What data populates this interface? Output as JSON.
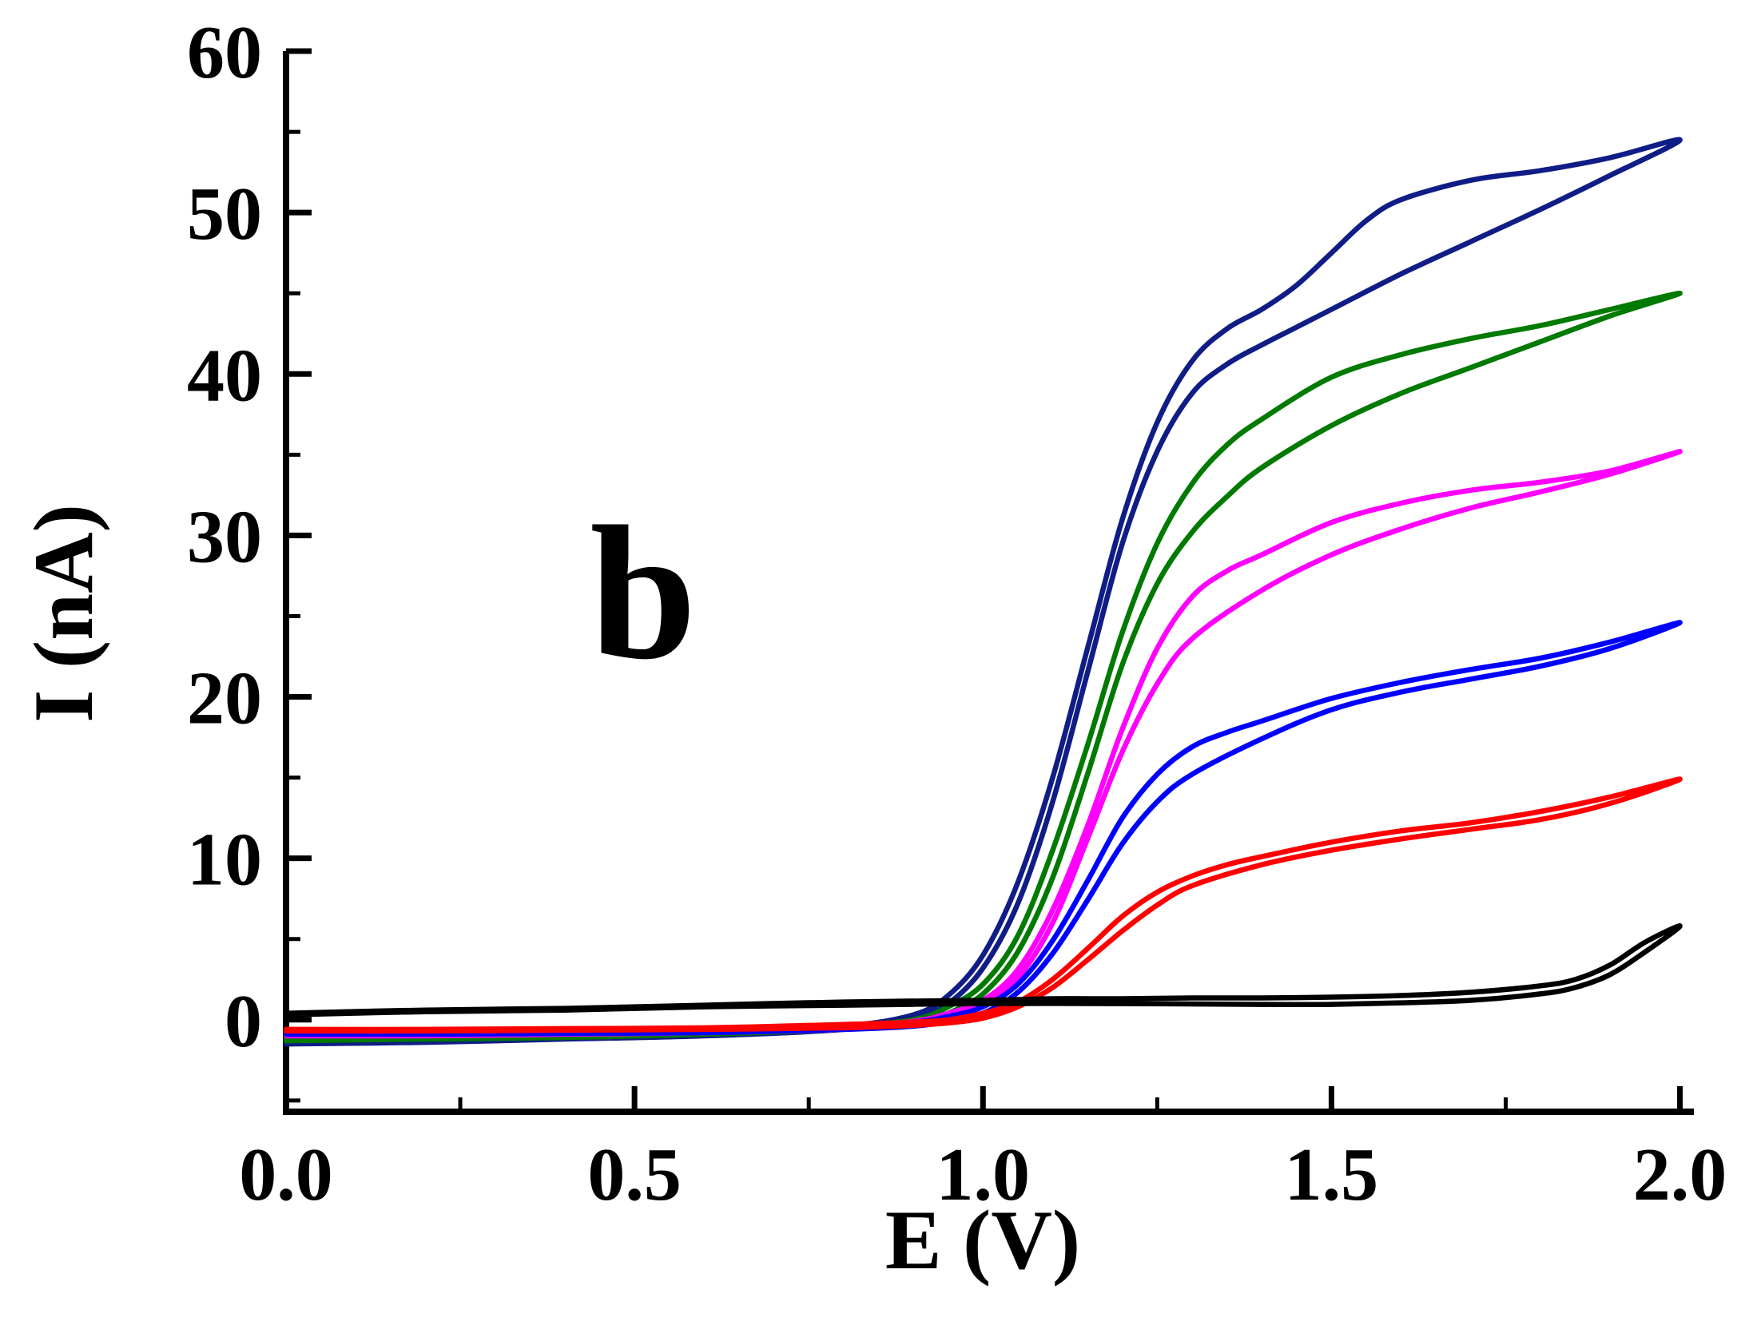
{
  "figure": {
    "background": "#ffffff"
  },
  "chart_data": {
    "type": "line",
    "title": "",
    "xlabel": "E (V)",
    "ylabel": "I (nA)",
    "annotation": {
      "text": "b",
      "x": 0.5,
      "y": 26
    },
    "xlim": [
      0,
      2.02
    ],
    "ylim": [
      -5.7,
      60
    ],
    "grid": false,
    "legend": "none",
    "axis_color": "#000000",
    "xticks": {
      "values": [
        0,
        0.5,
        1.0,
        1.5,
        2.0
      ],
      "labels": [
        "0.0",
        "0.5",
        "1.0",
        "1.5",
        "2.0"
      ]
    },
    "yticks": {
      "values": [
        0,
        10,
        20,
        30,
        40,
        50,
        60
      ],
      "labels": [
        "0",
        "10",
        "20",
        "30",
        "40",
        "50",
        "60"
      ]
    },
    "x_minor_ticks": [
      0.25,
      0.75,
      1.25,
      1.75
    ],
    "y_minor_ticks": [
      -5,
      5,
      15,
      25,
      35,
      45,
      55
    ],
    "series": [
      {
        "name": "navy",
        "color": "#101d86",
        "peak_current_nA": 54.5,
        "forward": [
          [
            0,
            -1.5
          ],
          [
            0.2,
            -1.3
          ],
          [
            0.4,
            -1.1
          ],
          [
            0.6,
            -0.9
          ],
          [
            0.8,
            -0.4
          ],
          [
            0.9,
            0.3
          ],
          [
            0.95,
            1.5
          ],
          [
            1.0,
            4
          ],
          [
            1.05,
            8.5
          ],
          [
            1.1,
            15
          ],
          [
            1.15,
            23
          ],
          [
            1.2,
            31
          ],
          [
            1.25,
            37
          ],
          [
            1.3,
            40.8
          ],
          [
            1.35,
            42.8
          ],
          [
            1.4,
            44
          ],
          [
            1.45,
            45.5
          ],
          [
            1.5,
            47.5
          ],
          [
            1.55,
            49.5
          ],
          [
            1.6,
            50.8
          ],
          [
            1.7,
            52
          ],
          [
            1.8,
            52.6
          ],
          [
            1.9,
            53.4
          ],
          [
            2.0,
            54.5
          ]
        ],
        "reverse": [
          [
            2.0,
            54.5
          ],
          [
            1.9,
            52.3
          ],
          [
            1.8,
            50.2
          ],
          [
            1.7,
            48.2
          ],
          [
            1.6,
            46.2
          ],
          [
            1.5,
            44
          ],
          [
            1.45,
            42.9
          ],
          [
            1.4,
            41.8
          ],
          [
            1.35,
            40.6
          ],
          [
            1.3,
            38.8
          ],
          [
            1.25,
            35.2
          ],
          [
            1.2,
            29.5
          ],
          [
            1.15,
            21.5
          ],
          [
            1.1,
            13.5
          ],
          [
            1.05,
            7.2
          ],
          [
            1.0,
            3.2
          ],
          [
            0.95,
            1.0
          ],
          [
            0.9,
            0.1
          ],
          [
            0.8,
            -0.6
          ],
          [
            0.6,
            -1.0
          ],
          [
            0.4,
            -1.2
          ],
          [
            0.2,
            -1.4
          ],
          [
            0,
            -1.5
          ]
        ]
      },
      {
        "name": "green",
        "color": "#007a00",
        "peak_current_nA": 45,
        "forward": [
          [
            0,
            -1.2
          ],
          [
            0.2,
            -1.1
          ],
          [
            0.4,
            -1.0
          ],
          [
            0.6,
            -0.8
          ],
          [
            0.8,
            -0.4
          ],
          [
            0.9,
            0.0
          ],
          [
            0.95,
            0.8
          ],
          [
            1.0,
            2.2
          ],
          [
            1.05,
            5.2
          ],
          [
            1.1,
            10.5
          ],
          [
            1.15,
            17
          ],
          [
            1.2,
            24
          ],
          [
            1.25,
            29.5
          ],
          [
            1.3,
            33.2
          ],
          [
            1.35,
            35.6
          ],
          [
            1.4,
            37.2
          ],
          [
            1.5,
            39.8
          ],
          [
            1.6,
            41.2
          ],
          [
            1.7,
            42.2
          ],
          [
            1.8,
            43
          ],
          [
            1.9,
            44
          ],
          [
            2.0,
            45
          ]
        ],
        "reverse": [
          [
            2.0,
            45
          ],
          [
            1.9,
            43.6
          ],
          [
            1.8,
            42
          ],
          [
            1.7,
            40.4
          ],
          [
            1.6,
            38.8
          ],
          [
            1.5,
            36.8
          ],
          [
            1.4,
            34.2
          ],
          [
            1.35,
            32.4
          ],
          [
            1.3,
            30.2
          ],
          [
            1.25,
            27
          ],
          [
            1.2,
            22
          ],
          [
            1.15,
            15.2
          ],
          [
            1.1,
            8.8
          ],
          [
            1.05,
            4.2
          ],
          [
            1.0,
            1.6
          ],
          [
            0.95,
            0.4
          ],
          [
            0.9,
            -0.3
          ],
          [
            0.8,
            -0.6
          ],
          [
            0.6,
            -0.9
          ],
          [
            0.4,
            -1.1
          ],
          [
            0.2,
            -1.2
          ],
          [
            0,
            -1.3
          ]
        ]
      },
      {
        "name": "magenta",
        "color": "#ff00ff",
        "peak_current_nA": 35.2,
        "forward": [
          [
            0,
            -0.9
          ],
          [
            0.2,
            -0.85
          ],
          [
            0.4,
            -0.8
          ],
          [
            0.6,
            -0.7
          ],
          [
            0.8,
            -0.4
          ],
          [
            0.9,
            -0.1
          ],
          [
            0.95,
            0.4
          ],
          [
            1.0,
            1.2
          ],
          [
            1.05,
            3.1
          ],
          [
            1.1,
            6.8
          ],
          [
            1.15,
            12
          ],
          [
            1.2,
            18
          ],
          [
            1.25,
            23
          ],
          [
            1.3,
            26.2
          ],
          [
            1.35,
            27.8
          ],
          [
            1.4,
            28.8
          ],
          [
            1.5,
            30.8
          ],
          [
            1.6,
            32
          ],
          [
            1.7,
            32.8
          ],
          [
            1.8,
            33.3
          ],
          [
            1.9,
            34
          ],
          [
            2.0,
            35.2
          ]
        ],
        "reverse": [
          [
            2.0,
            35.2
          ],
          [
            1.9,
            33.8
          ],
          [
            1.8,
            32.7
          ],
          [
            1.7,
            31.7
          ],
          [
            1.6,
            30.4
          ],
          [
            1.5,
            28.8
          ],
          [
            1.4,
            26.6
          ],
          [
            1.3,
            23.6
          ],
          [
            1.25,
            20.8
          ],
          [
            1.2,
            16.6
          ],
          [
            1.15,
            11.2
          ],
          [
            1.1,
            6
          ],
          [
            1.05,
            2.6
          ],
          [
            1.0,
            0.9
          ],
          [
            0.95,
            0.1
          ],
          [
            0.9,
            -0.3
          ],
          [
            0.8,
            -0.6
          ],
          [
            0.6,
            -0.8
          ],
          [
            0.4,
            -0.9
          ],
          [
            0.2,
            -1.0
          ],
          [
            0,
            -1.0
          ]
        ]
      },
      {
        "name": "blue",
        "color": "#0000ff",
        "peak_current_nA": 24.6,
        "forward": [
          [
            0,
            -0.8
          ],
          [
            0.2,
            -0.8
          ],
          [
            0.4,
            -0.75
          ],
          [
            0.6,
            -0.7
          ],
          [
            0.8,
            -0.4
          ],
          [
            0.9,
            -0.15
          ],
          [
            0.95,
            0.2
          ],
          [
            1.0,
            0.8
          ],
          [
            1.05,
            2.2
          ],
          [
            1.1,
            4.9
          ],
          [
            1.15,
            8.6
          ],
          [
            1.2,
            12.5
          ],
          [
            1.25,
            15.2
          ],
          [
            1.3,
            16.9
          ],
          [
            1.35,
            17.8
          ],
          [
            1.4,
            18.5
          ],
          [
            1.5,
            19.9
          ],
          [
            1.6,
            20.9
          ],
          [
            1.7,
            21.7
          ],
          [
            1.8,
            22.4
          ],
          [
            1.9,
            23.4
          ],
          [
            2.0,
            24.6
          ]
        ],
        "reverse": [
          [
            2.0,
            24.6
          ],
          [
            1.9,
            23
          ],
          [
            1.8,
            21.9
          ],
          [
            1.7,
            21.1
          ],
          [
            1.6,
            20.3
          ],
          [
            1.5,
            19.2
          ],
          [
            1.4,
            17.4
          ],
          [
            1.3,
            15.2
          ],
          [
            1.25,
            13.5
          ],
          [
            1.2,
            10.9
          ],
          [
            1.15,
            7.4
          ],
          [
            1.1,
            4.1
          ],
          [
            1.05,
            1.7
          ],
          [
            1.0,
            0.4
          ],
          [
            0.95,
            -0.1
          ],
          [
            0.9,
            -0.4
          ],
          [
            0.8,
            -0.6
          ],
          [
            0.6,
            -0.8
          ],
          [
            0.4,
            -0.85
          ],
          [
            0.2,
            -0.9
          ],
          [
            0,
            -0.9
          ]
        ]
      },
      {
        "name": "red",
        "color": "#ff0000",
        "peak_current_nA": 14.9,
        "forward": [
          [
            0,
            -0.6
          ],
          [
            0.2,
            -0.6
          ],
          [
            0.4,
            -0.55
          ],
          [
            0.6,
            -0.5
          ],
          [
            0.8,
            -0.3
          ],
          [
            0.9,
            -0.15
          ],
          [
            0.95,
            0.0
          ],
          [
            1.0,
            0.4
          ],
          [
            1.05,
            1.1
          ],
          [
            1.1,
            2.5
          ],
          [
            1.15,
            4.4
          ],
          [
            1.2,
            6.4
          ],
          [
            1.25,
            7.9
          ],
          [
            1.3,
            8.9
          ],
          [
            1.35,
            9.6
          ],
          [
            1.4,
            10.1
          ],
          [
            1.5,
            11
          ],
          [
            1.6,
            11.7
          ],
          [
            1.7,
            12.2
          ],
          [
            1.8,
            12.9
          ],
          [
            1.9,
            13.8
          ],
          [
            2.0,
            14.9
          ]
        ],
        "reverse": [
          [
            2.0,
            14.9
          ],
          [
            1.9,
            13.4
          ],
          [
            1.8,
            12.4
          ],
          [
            1.7,
            11.8
          ],
          [
            1.6,
            11.2
          ],
          [
            1.5,
            10.5
          ],
          [
            1.4,
            9.6
          ],
          [
            1.3,
            8.3
          ],
          [
            1.25,
            7.1
          ],
          [
            1.2,
            5.5
          ],
          [
            1.15,
            3.7
          ],
          [
            1.1,
            2.0
          ],
          [
            1.05,
            0.8
          ],
          [
            1.0,
            0.1
          ],
          [
            0.95,
            -0.2
          ],
          [
            0.9,
            -0.35
          ],
          [
            0.8,
            -0.5
          ],
          [
            0.6,
            -0.6
          ],
          [
            0.4,
            -0.65
          ],
          [
            0.2,
            -0.7
          ],
          [
            0,
            -0.7
          ]
        ]
      },
      {
        "name": "black",
        "color": "#000000",
        "peak_current_nA": 5.8,
        "forward": [
          [
            0,
            0.3
          ],
          [
            0.2,
            0.5
          ],
          [
            0.4,
            0.6
          ],
          [
            0.6,
            0.8
          ],
          [
            0.8,
            0.9
          ],
          [
            1.0,
            1.0
          ],
          [
            1.2,
            1.0
          ],
          [
            1.4,
            0.95
          ],
          [
            1.5,
            0.95
          ],
          [
            1.6,
            1.05
          ],
          [
            1.7,
            1.2
          ],
          [
            1.8,
            1.6
          ],
          [
            1.85,
            2.0
          ],
          [
            1.9,
            2.8
          ],
          [
            1.95,
            4.2
          ],
          [
            2.0,
            5.8
          ]
        ],
        "reverse": [
          [
            2.0,
            5.8
          ],
          [
            1.95,
            4.8
          ],
          [
            1.9,
            3.4
          ],
          [
            1.85,
            2.5
          ],
          [
            1.8,
            2.1
          ],
          [
            1.7,
            1.7
          ],
          [
            1.6,
            1.5
          ],
          [
            1.5,
            1.4
          ],
          [
            1.4,
            1.35
          ],
          [
            1.3,
            1.35
          ],
          [
            1.2,
            1.3
          ],
          [
            1.1,
            1.3
          ],
          [
            1.0,
            1.2
          ],
          [
            0.8,
            1.1
          ],
          [
            0.6,
            0.9
          ],
          [
            0.4,
            0.7
          ],
          [
            0.2,
            0.6
          ],
          [
            0,
            0.4
          ]
        ]
      }
    ]
  }
}
